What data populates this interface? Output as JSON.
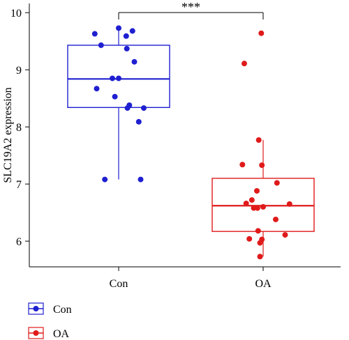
{
  "chart_data": {
    "type": "box",
    "ylabel": "SLC19A2 expression",
    "xlabel": "",
    "categories": [
      "Con",
      "OA"
    ],
    "ylim": [
      5.55,
      10.1
    ],
    "yticks": [
      6,
      7,
      8,
      9,
      10
    ],
    "grid": false,
    "legend_position": "bottom-left",
    "significance": {
      "between": [
        "Con",
        "OA"
      ],
      "label": "***"
    },
    "series": [
      {
        "name": "Con",
        "color": "#1f1fd1",
        "box": {
          "q1": 8.34,
          "median": 8.84,
          "q3": 9.43,
          "whisker_low": 7.08,
          "whisker_high": 9.73
        },
        "points": [
          [
            -0.38,
            9.63
          ],
          [
            -0.28,
            9.43
          ],
          [
            0.0,
            9.73
          ],
          [
            0.22,
            9.68
          ],
          [
            0.12,
            9.59
          ],
          [
            0.13,
            9.37
          ],
          [
            0.25,
            9.14
          ],
          [
            -0.1,
            8.85
          ],
          [
            0.0,
            8.85
          ],
          [
            -0.35,
            8.67
          ],
          [
            -0.06,
            8.53
          ],
          [
            0.17,
            8.38
          ],
          [
            0.14,
            8.33
          ],
          [
            0.4,
            8.33
          ],
          [
            0.32,
            8.09
          ],
          [
            -0.22,
            7.08
          ],
          [
            0.35,
            7.08
          ]
        ]
      },
      {
        "name": "OA",
        "color": "#e01a1a",
        "box": {
          "q1": 6.17,
          "median": 6.62,
          "q3": 7.1,
          "whisker_low": 5.73,
          "whisker_high": 7.77
        },
        "points": [
          [
            -0.03,
            9.64
          ],
          [
            -0.3,
            9.11
          ],
          [
            -0.07,
            7.77
          ],
          [
            -0.33,
            7.34
          ],
          [
            -0.02,
            7.33
          ],
          [
            0.22,
            7.02
          ],
          [
            -0.1,
            6.88
          ],
          [
            -0.18,
            6.72
          ],
          [
            0.42,
            6.65
          ],
          [
            -0.27,
            6.66
          ],
          [
            -0.15,
            6.58
          ],
          [
            -0.09,
            6.58
          ],
          [
            0.0,
            6.6
          ],
          [
            0.2,
            6.38
          ],
          [
            -0.08,
            6.18
          ],
          [
            0.35,
            6.11
          ],
          [
            -0.22,
            6.04
          ],
          [
            -0.02,
            6.03
          ],
          [
            -0.05,
            5.97
          ],
          [
            -0.05,
            5.73
          ]
        ]
      }
    ]
  }
}
